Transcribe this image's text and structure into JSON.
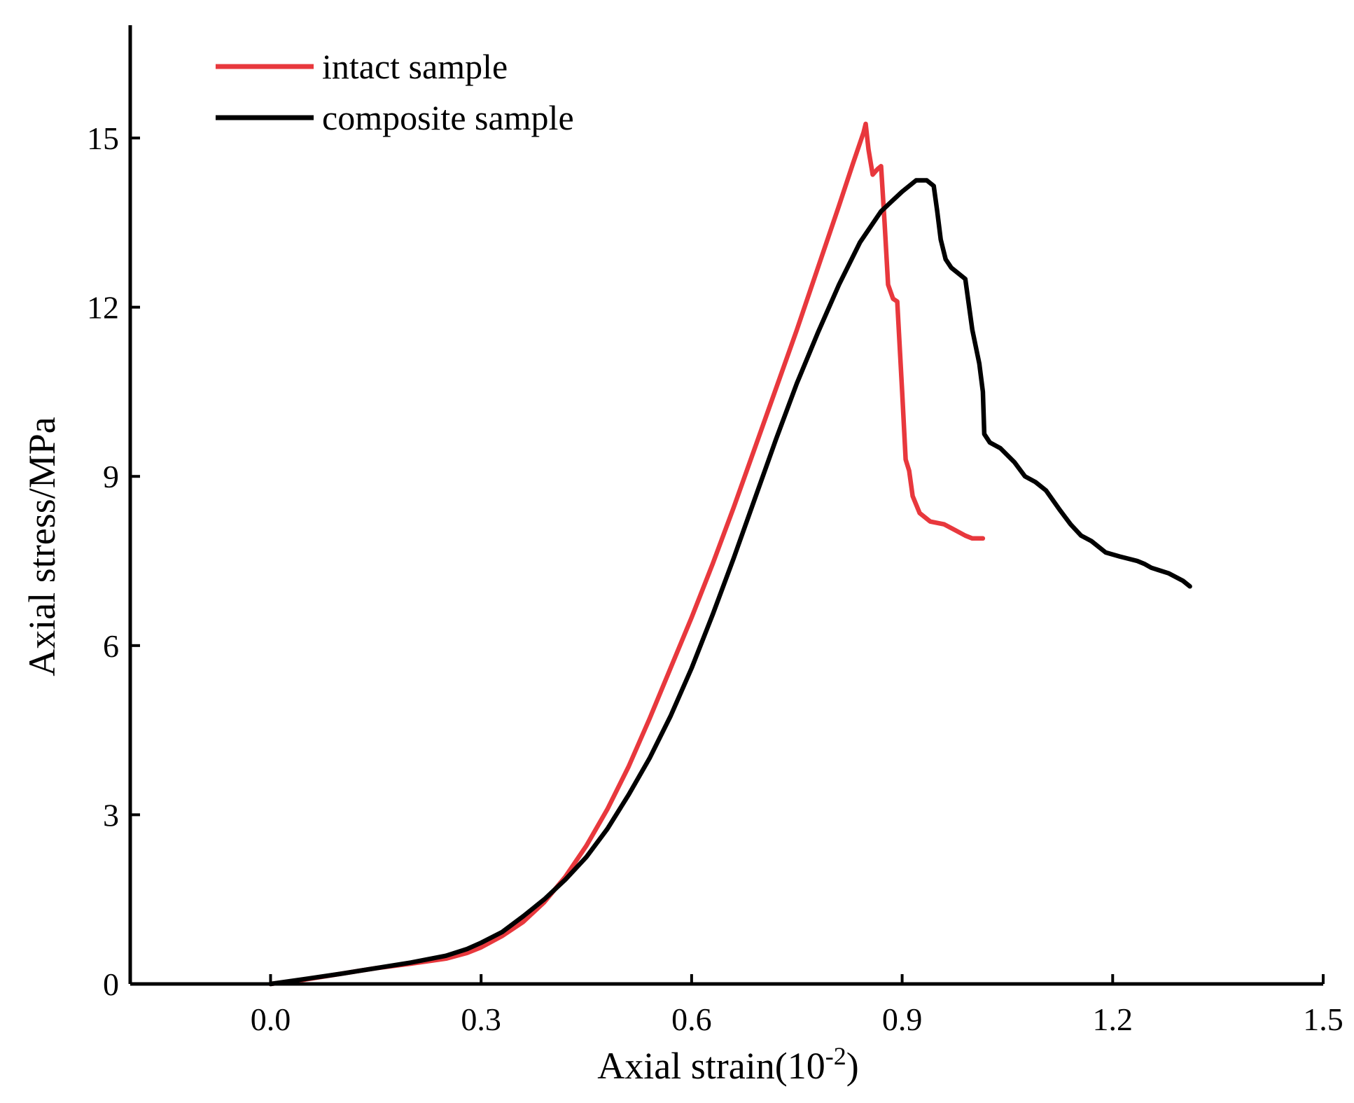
{
  "chart_data": {
    "type": "line",
    "title": "",
    "xlabel": "Axial strain(10",
    "xlabel_superscript": "-2",
    "xlabel_suffix": ")",
    "ylabel": "Axial stress/MPa",
    "xlim": [
      -0.2,
      1.5
    ],
    "ylim": [
      0,
      17
    ],
    "xticks": [
      0.0,
      0.3,
      0.6,
      0.9,
      1.2,
      1.5
    ],
    "xtick_labels": [
      "0.0",
      "0.3",
      "0.6",
      "0.9",
      "1.2",
      "1.5"
    ],
    "yticks": [
      0,
      3,
      6,
      9,
      12,
      15
    ],
    "ytick_labels": [
      "0",
      "3",
      "6",
      "9",
      "12",
      "15"
    ],
    "grid": false,
    "legend_position": "top-left",
    "series": [
      {
        "name": "intact sample",
        "color": "#e8383d",
        "points": [
          [
            0.0,
            0.0
          ],
          [
            0.05,
            0.08
          ],
          [
            0.1,
            0.18
          ],
          [
            0.15,
            0.28
          ],
          [
            0.2,
            0.36
          ],
          [
            0.25,
            0.45
          ],
          [
            0.28,
            0.55
          ],
          [
            0.3,
            0.65
          ],
          [
            0.33,
            0.85
          ],
          [
            0.36,
            1.1
          ],
          [
            0.39,
            1.45
          ],
          [
            0.42,
            1.9
          ],
          [
            0.45,
            2.45
          ],
          [
            0.48,
            3.1
          ],
          [
            0.51,
            3.85
          ],
          [
            0.54,
            4.7
          ],
          [
            0.57,
            5.6
          ],
          [
            0.6,
            6.5
          ],
          [
            0.63,
            7.45
          ],
          [
            0.66,
            8.45
          ],
          [
            0.69,
            9.5
          ],
          [
            0.72,
            10.55
          ],
          [
            0.75,
            11.6
          ],
          [
            0.78,
            12.7
          ],
          [
            0.81,
            13.8
          ],
          [
            0.83,
            14.55
          ],
          [
            0.845,
            15.1
          ],
          [
            0.848,
            15.25
          ],
          [
            0.852,
            14.8
          ],
          [
            0.858,
            14.35
          ],
          [
            0.865,
            14.45
          ],
          [
            0.87,
            14.5
          ],
          [
            0.875,
            13.5
          ],
          [
            0.88,
            12.4
          ],
          [
            0.887,
            12.15
          ],
          [
            0.893,
            12.1
          ],
          [
            0.9,
            10.5
          ],
          [
            0.905,
            9.3
          ],
          [
            0.91,
            9.1
          ],
          [
            0.915,
            8.65
          ],
          [
            0.925,
            8.35
          ],
          [
            0.94,
            8.2
          ],
          [
            0.96,
            8.15
          ],
          [
            0.975,
            8.05
          ],
          [
            0.99,
            7.95
          ],
          [
            1.0,
            7.9
          ],
          [
            1.015,
            7.9
          ]
        ]
      },
      {
        "name": "composite sample",
        "color": "#000000",
        "points": [
          [
            0.0,
            0.0
          ],
          [
            0.05,
            0.09
          ],
          [
            0.1,
            0.18
          ],
          [
            0.15,
            0.28
          ],
          [
            0.2,
            0.38
          ],
          [
            0.25,
            0.5
          ],
          [
            0.28,
            0.62
          ],
          [
            0.3,
            0.73
          ],
          [
            0.33,
            0.92
          ],
          [
            0.36,
            1.2
          ],
          [
            0.39,
            1.5
          ],
          [
            0.42,
            1.85
          ],
          [
            0.45,
            2.25
          ],
          [
            0.48,
            2.75
          ],
          [
            0.51,
            3.35
          ],
          [
            0.54,
            4.0
          ],
          [
            0.57,
            4.75
          ],
          [
            0.6,
            5.6
          ],
          [
            0.63,
            6.55
          ],
          [
            0.66,
            7.55
          ],
          [
            0.69,
            8.6
          ],
          [
            0.72,
            9.65
          ],
          [
            0.75,
            10.65
          ],
          [
            0.78,
            11.55
          ],
          [
            0.81,
            12.4
          ],
          [
            0.84,
            13.15
          ],
          [
            0.87,
            13.7
          ],
          [
            0.9,
            14.05
          ],
          [
            0.92,
            14.25
          ],
          [
            0.935,
            14.25
          ],
          [
            0.945,
            14.15
          ],
          [
            0.95,
            13.7
          ],
          [
            0.955,
            13.2
          ],
          [
            0.962,
            12.85
          ],
          [
            0.97,
            12.7
          ],
          [
            0.98,
            12.6
          ],
          [
            0.99,
            12.5
          ],
          [
            1.0,
            11.6
          ],
          [
            1.01,
            11.0
          ],
          [
            1.015,
            10.5
          ],
          [
            1.017,
            9.75
          ],
          [
            1.025,
            9.6
          ],
          [
            1.04,
            9.5
          ],
          [
            1.06,
            9.25
          ],
          [
            1.075,
            9.0
          ],
          [
            1.09,
            8.9
          ],
          [
            1.105,
            8.75
          ],
          [
            1.125,
            8.4
          ],
          [
            1.14,
            8.15
          ],
          [
            1.155,
            7.95
          ],
          [
            1.17,
            7.85
          ],
          [
            1.19,
            7.65
          ],
          [
            1.21,
            7.58
          ],
          [
            1.235,
            7.5
          ],
          [
            1.245,
            7.45
          ],
          [
            1.255,
            7.38
          ],
          [
            1.28,
            7.28
          ],
          [
            1.3,
            7.15
          ],
          [
            1.31,
            7.05
          ]
        ]
      }
    ]
  }
}
